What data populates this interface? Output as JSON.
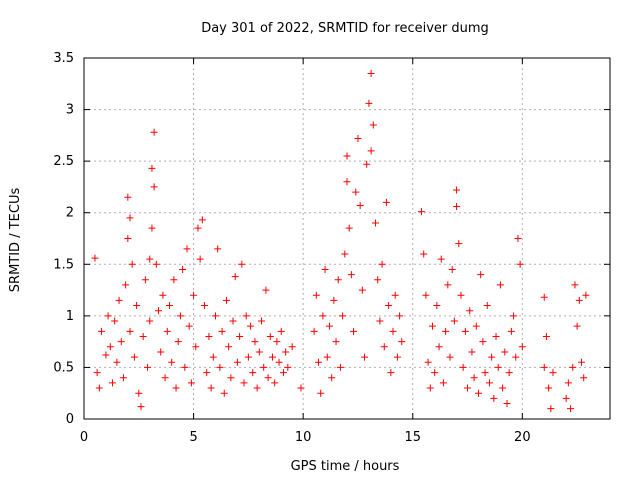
{
  "chart_data": {
    "type": "scatter",
    "title": "Day 301 of 2022, SRMTID for receiver dumg",
    "xlabel": "GPS time / hours",
    "ylabel": "SRMTID / TECUs",
    "xlim": [
      0,
      24
    ],
    "ylim": [
      0,
      3.5
    ],
    "x_ticks": [
      0,
      5,
      10,
      15,
      20
    ],
    "y_ticks": [
      0,
      0.5,
      1,
      1.5,
      2,
      2.5,
      3,
      3.5
    ],
    "grid": true,
    "marker": "+",
    "color": "#ff0000",
    "series": [
      {
        "name": "SRMTID",
        "points": [
          [
            0.5,
            1.56
          ],
          [
            0.6,
            0.45
          ],
          [
            0.7,
            0.3
          ],
          [
            0.8,
            0.85
          ],
          [
            1.0,
            0.62
          ],
          [
            1.1,
            1.0
          ],
          [
            1.2,
            0.7
          ],
          [
            1.3,
            0.35
          ],
          [
            1.4,
            0.95
          ],
          [
            1.5,
            0.55
          ],
          [
            1.6,
            1.15
          ],
          [
            1.7,
            0.75
          ],
          [
            1.8,
            0.4
          ],
          [
            1.9,
            1.3
          ],
          [
            2.0,
            2.15
          ],
          [
            2.0,
            1.75
          ],
          [
            2.1,
            1.95
          ],
          [
            2.1,
            0.85
          ],
          [
            2.2,
            1.5
          ],
          [
            2.3,
            0.6
          ],
          [
            2.4,
            1.1
          ],
          [
            2.5,
            0.25
          ],
          [
            2.6,
            0.12
          ],
          [
            2.7,
            0.8
          ],
          [
            2.8,
            1.35
          ],
          [
            2.9,
            0.5
          ],
          [
            3.0,
            1.55
          ],
          [
            3.0,
            0.95
          ],
          [
            3.1,
            1.85
          ],
          [
            3.1,
            2.43
          ],
          [
            3.2,
            2.78
          ],
          [
            3.2,
            2.25
          ],
          [
            3.3,
            1.5
          ],
          [
            3.4,
            1.05
          ],
          [
            3.5,
            0.65
          ],
          [
            3.6,
            1.2
          ],
          [
            3.7,
            0.4
          ],
          [
            3.8,
            0.85
          ],
          [
            3.9,
            1.1
          ],
          [
            4.0,
            0.55
          ],
          [
            4.1,
            1.35
          ],
          [
            4.2,
            0.3
          ],
          [
            4.3,
            0.75
          ],
          [
            4.4,
            1.0
          ],
          [
            4.5,
            1.45
          ],
          [
            4.6,
            0.5
          ],
          [
            4.7,
            1.65
          ],
          [
            4.8,
            0.9
          ],
          [
            4.9,
            0.35
          ],
          [
            5.0,
            1.2
          ],
          [
            5.1,
            0.7
          ],
          [
            5.2,
            1.85
          ],
          [
            5.3,
            1.55
          ],
          [
            5.4,
            1.93
          ],
          [
            5.5,
            1.1
          ],
          [
            5.6,
            0.45
          ],
          [
            5.7,
            0.8
          ],
          [
            5.8,
            0.3
          ],
          [
            5.9,
            0.6
          ],
          [
            6.0,
            1.0
          ],
          [
            6.1,
            1.65
          ],
          [
            6.2,
            0.5
          ],
          [
            6.3,
            0.85
          ],
          [
            6.4,
            0.25
          ],
          [
            6.5,
            1.15
          ],
          [
            6.6,
            0.7
          ],
          [
            6.7,
            0.4
          ],
          [
            6.8,
            0.95
          ],
          [
            6.9,
            1.38
          ],
          [
            7.0,
            0.55
          ],
          [
            7.1,
            0.8
          ],
          [
            7.2,
            1.5
          ],
          [
            7.3,
            0.35
          ],
          [
            7.4,
            1.0
          ],
          [
            7.5,
            0.6
          ],
          [
            7.6,
            0.9
          ],
          [
            7.7,
            0.45
          ],
          [
            7.8,
            0.75
          ],
          [
            7.9,
            0.3
          ],
          [
            8.0,
            0.65
          ],
          [
            8.1,
            0.95
          ],
          [
            8.2,
            0.5
          ],
          [
            8.3,
            1.25
          ],
          [
            8.4,
            0.4
          ],
          [
            8.5,
            0.8
          ],
          [
            8.6,
            0.6
          ],
          [
            8.7,
            0.35
          ],
          [
            8.8,
            0.75
          ],
          [
            8.9,
            0.55
          ],
          [
            9.0,
            0.85
          ],
          [
            9.1,
            0.45
          ],
          [
            9.2,
            0.65
          ],
          [
            9.3,
            0.5
          ],
          [
            9.5,
            0.7
          ],
          [
            9.9,
            0.3
          ],
          [
            10.5,
            0.85
          ],
          [
            10.6,
            1.2
          ],
          [
            10.7,
            0.55
          ],
          [
            10.8,
            0.25
          ],
          [
            10.9,
            1.0
          ],
          [
            11.0,
            1.45
          ],
          [
            11.1,
            0.6
          ],
          [
            11.2,
            0.9
          ],
          [
            11.3,
            0.4
          ],
          [
            11.4,
            1.15
          ],
          [
            11.5,
            0.75
          ],
          [
            11.6,
            1.35
          ],
          [
            11.7,
            0.5
          ],
          [
            11.8,
            1.0
          ],
          [
            11.9,
            1.6
          ],
          [
            12.0,
            2.55
          ],
          [
            12.0,
            2.3
          ],
          [
            12.1,
            1.85
          ],
          [
            12.2,
            1.4
          ],
          [
            12.3,
            0.85
          ],
          [
            12.4,
            2.2
          ],
          [
            12.5,
            2.72
          ],
          [
            12.6,
            2.07
          ],
          [
            12.7,
            1.25
          ],
          [
            12.8,
            0.6
          ],
          [
            12.9,
            2.47
          ],
          [
            13.0,
            3.06
          ],
          [
            13.1,
            3.35
          ],
          [
            13.1,
            2.6
          ],
          [
            13.2,
            2.85
          ],
          [
            13.3,
            1.9
          ],
          [
            13.4,
            1.35
          ],
          [
            13.5,
            0.95
          ],
          [
            13.6,
            1.5
          ],
          [
            13.7,
            0.7
          ],
          [
            13.8,
            2.1
          ],
          [
            13.9,
            1.1
          ],
          [
            14.0,
            0.45
          ],
          [
            14.1,
            0.85
          ],
          [
            14.2,
            1.2
          ],
          [
            14.3,
            0.6
          ],
          [
            14.4,
            1.0
          ],
          [
            14.5,
            0.75
          ],
          [
            15.4,
            2.01
          ],
          [
            15.5,
            1.6
          ],
          [
            15.6,
            1.2
          ],
          [
            15.7,
            0.55
          ],
          [
            15.8,
            0.3
          ],
          [
            15.9,
            0.9
          ],
          [
            16.0,
            0.45
          ],
          [
            16.1,
            1.1
          ],
          [
            16.2,
            0.7
          ],
          [
            16.3,
            1.55
          ],
          [
            16.4,
            0.35
          ],
          [
            16.5,
            0.85
          ],
          [
            16.6,
            1.3
          ],
          [
            16.7,
            0.6
          ],
          [
            16.8,
            1.45
          ],
          [
            16.9,
            0.95
          ],
          [
            17.0,
            2.22
          ],
          [
            17.0,
            2.06
          ],
          [
            17.1,
            1.7
          ],
          [
            17.2,
            1.2
          ],
          [
            17.3,
            0.5
          ],
          [
            17.4,
            0.85
          ],
          [
            17.5,
            0.3
          ],
          [
            17.6,
            1.05
          ],
          [
            17.7,
            0.65
          ],
          [
            17.8,
            0.4
          ],
          [
            17.9,
            0.9
          ],
          [
            18.0,
            0.25
          ],
          [
            18.1,
            1.4
          ],
          [
            18.2,
            0.75
          ],
          [
            18.3,
            0.45
          ],
          [
            18.4,
            1.1
          ],
          [
            18.5,
            0.35
          ],
          [
            18.6,
            0.6
          ],
          [
            18.7,
            0.2
          ],
          [
            18.8,
            0.8
          ],
          [
            18.9,
            0.5
          ],
          [
            19.0,
            1.3
          ],
          [
            19.1,
            0.3
          ],
          [
            19.2,
            0.65
          ],
          [
            19.3,
            0.15
          ],
          [
            19.4,
            0.45
          ],
          [
            19.5,
            0.85
          ],
          [
            19.6,
            1.0
          ],
          [
            19.7,
            0.6
          ],
          [
            19.8,
            1.75
          ],
          [
            19.9,
            1.5
          ],
          [
            20.0,
            0.7
          ],
          [
            21.0,
            0.5
          ],
          [
            21.0,
            1.18
          ],
          [
            21.1,
            0.8
          ],
          [
            21.2,
            0.3
          ],
          [
            21.3,
            0.1
          ],
          [
            21.4,
            0.45
          ],
          [
            22.0,
            0.2
          ],
          [
            22.1,
            0.35
          ],
          [
            22.2,
            0.1
          ],
          [
            22.3,
            0.5
          ],
          [
            22.4,
            1.3
          ],
          [
            22.5,
            0.9
          ],
          [
            22.6,
            1.15
          ],
          [
            22.7,
            0.55
          ],
          [
            22.8,
            0.4
          ],
          [
            22.9,
            1.2
          ]
        ]
      }
    ]
  }
}
